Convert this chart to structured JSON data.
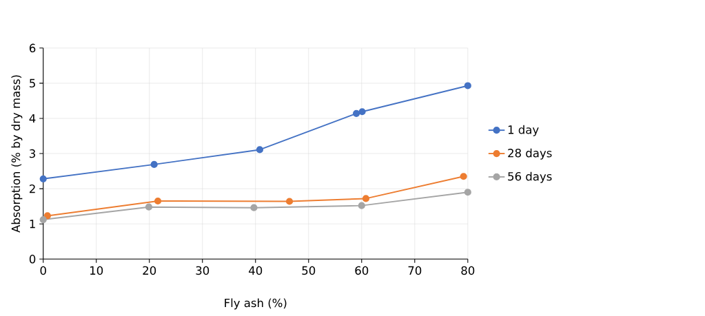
{
  "chart_data": {
    "type": "line",
    "xlabel": "Fly ash (%)",
    "ylabel": "Absorption (% by dry mass)",
    "xlim": [
      0,
      80
    ],
    "xticks": [
      0,
      10,
      20,
      30,
      40,
      50,
      60,
      70,
      80
    ],
    "ylim": [
      0,
      6
    ],
    "yticks": [
      0,
      1,
      2,
      3,
      4,
      5,
      6
    ],
    "grid": true,
    "legend": "right",
    "marker": "circle",
    "line_style": "solid",
    "series": [
      {
        "name": "1 day",
        "color": "#4472c4",
        "x": [
          0,
          20.9,
          40.8,
          59.0,
          60.1,
          80
        ],
        "values": [
          2.28,
          2.69,
          3.11,
          4.14,
          4.19,
          4.93
        ]
      },
      {
        "name": "28 days",
        "color": "#ed7d31",
        "x": [
          0.8,
          21.6,
          46.4,
          60.8,
          79.2
        ],
        "values": [
          1.23,
          1.65,
          1.64,
          1.72,
          2.35
        ]
      },
      {
        "name": "56 days",
        "color": "#a5a5a5",
        "x": [
          0,
          19.9,
          39.7,
          60,
          80
        ],
        "values": [
          1.12,
          1.48,
          1.46,
          1.52,
          1.9
        ]
      }
    ]
  }
}
